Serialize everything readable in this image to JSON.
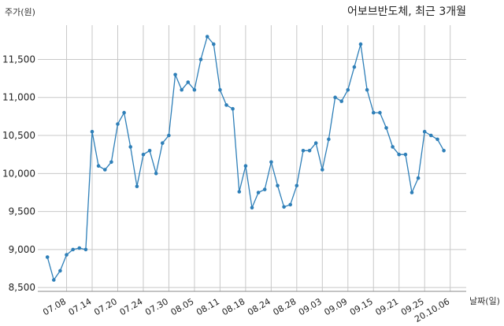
{
  "chart_data": {
    "type": "line",
    "title": "어보브반도체, 최근 3개월",
    "ylabel": "주가(원)",
    "xlabel": "날짜(일)",
    "ylim": [
      8450,
      11950
    ],
    "yticks": [
      8500,
      9000,
      9500,
      10000,
      10500,
      11000,
      11500
    ],
    "ytick_labels": [
      "8,500",
      "9,000",
      "9,500",
      "10,000",
      "10,500",
      "11,000",
      "11,500"
    ],
    "xtick_labels": [
      "07.08",
      "07.14",
      "07.20",
      "07.24",
      "07.30",
      "08.05",
      "08.11",
      "08.18",
      "08.24",
      "08.28",
      "09.03",
      "09.09",
      "09.15",
      "09.21",
      "09.25",
      "20.10.06"
    ],
    "xtick_index": [
      3,
      7,
      11,
      15,
      19,
      23,
      27,
      31,
      35,
      39,
      43,
      47,
      51,
      55,
      59,
      63
    ],
    "x_range": [
      -1.5,
      65.5
    ],
    "grid": true,
    "series": [
      {
        "color": "#2e7fb8",
        "values": [
          8900,
          8600,
          8720,
          8930,
          9000,
          9020,
          9000,
          10550,
          10100,
          10050,
          10150,
          10650,
          10800,
          10350,
          9830,
          10250,
          10300,
          10000,
          10400,
          10500,
          11300,
          11100,
          11200,
          11100,
          11500,
          11800,
          11700,
          11100,
          10900,
          10850,
          9760,
          10100,
          9550,
          9750,
          9790,
          10150,
          9840,
          9560,
          9590,
          9840,
          10300,
          10300,
          10400,
          10050,
          10450,
          11000,
          10950,
          11100,
          11400,
          11700,
          11100,
          10800,
          10800,
          10600,
          10350,
          10250,
          10250,
          9750,
          9940,
          10550,
          10500,
          10450,
          10300
        ]
      }
    ]
  }
}
